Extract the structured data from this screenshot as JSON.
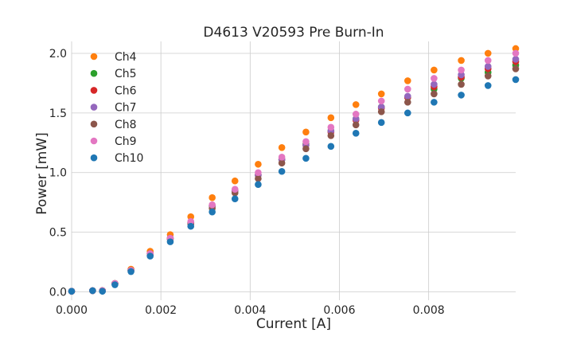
{
  "chart_data": {
    "type": "scatter",
    "title": "D4613 V20593 Pre Burn-In",
    "xlabel": "Current [A]",
    "ylabel": "Power [mW]",
    "xlim": [
      0,
      0.00995
    ],
    "ylim": [
      -0.07,
      2.1
    ],
    "x_ticks": [
      0,
      0.002,
      0.004,
      0.006,
      0.008
    ],
    "x_tick_labels": [
      "0.000",
      "0.002",
      "0.004",
      "0.006",
      "0.008"
    ],
    "y_ticks": [
      0,
      0.5,
      1.0,
      1.5,
      2.0
    ],
    "y_tick_labels": [
      "0.0",
      "0.5",
      "1.0",
      "1.5",
      "2.0"
    ],
    "grid": true,
    "legend_position": "upper-left",
    "x": [
      0,
      0.00047,
      0.00069,
      0.00097,
      0.00133,
      0.00176,
      0.00221,
      0.00267,
      0.00315,
      0.00366,
      0.00418,
      0.00471,
      0.00525,
      0.00581,
      0.00637,
      0.00694,
      0.00753,
      0.00812,
      0.00873,
      0.00933,
      0.00995
    ],
    "series": [
      {
        "name": "Ch4",
        "color": "#ff7f0e",
        "values": [
          0.005,
          0.01,
          0.01,
          0.07,
          0.19,
          0.34,
          0.48,
          0.63,
          0.79,
          0.93,
          1.07,
          1.21,
          1.34,
          1.46,
          1.57,
          1.66,
          1.77,
          1.86,
          1.94,
          2.0,
          2.04
        ]
      },
      {
        "name": "Ch5",
        "color": "#2ca02c",
        "values": [
          0.005,
          0.01,
          0.01,
          0.07,
          0.18,
          0.32,
          0.45,
          0.58,
          0.72,
          0.85,
          0.98,
          1.11,
          1.24,
          1.35,
          1.45,
          1.55,
          1.63,
          1.7,
          1.79,
          1.84,
          1.9
        ]
      },
      {
        "name": "Ch6",
        "color": "#d62728",
        "values": [
          0.005,
          0.01,
          0.01,
          0.07,
          0.18,
          0.32,
          0.45,
          0.58,
          0.72,
          0.85,
          0.98,
          1.11,
          1.23,
          1.34,
          1.44,
          1.54,
          1.63,
          1.72,
          1.8,
          1.87,
          1.93
        ]
      },
      {
        "name": "Ch7",
        "color": "#9467bd",
        "values": [
          0.005,
          0.01,
          0.01,
          0.07,
          0.18,
          0.32,
          0.45,
          0.58,
          0.72,
          0.85,
          0.98,
          1.11,
          1.23,
          1.35,
          1.45,
          1.55,
          1.64,
          1.74,
          1.82,
          1.89,
          1.95
        ]
      },
      {
        "name": "Ch8",
        "color": "#8c564b",
        "values": [
          0.005,
          0.01,
          0.01,
          0.07,
          0.18,
          0.31,
          0.44,
          0.57,
          0.7,
          0.83,
          0.95,
          1.08,
          1.2,
          1.31,
          1.4,
          1.51,
          1.59,
          1.66,
          1.74,
          1.81,
          1.87
        ]
      },
      {
        "name": "Ch9",
        "color": "#e377c2",
        "values": [
          0.005,
          0.01,
          0.01,
          0.07,
          0.18,
          0.32,
          0.45,
          0.59,
          0.73,
          0.86,
          1.0,
          1.13,
          1.26,
          1.38,
          1.49,
          1.6,
          1.7,
          1.79,
          1.86,
          1.94,
          2.0
        ]
      },
      {
        "name": "Ch10",
        "color": "#1f77b4",
        "values": [
          0.005,
          0.01,
          0.005,
          0.06,
          0.17,
          0.3,
          0.42,
          0.55,
          0.67,
          0.78,
          0.9,
          1.01,
          1.12,
          1.22,
          1.33,
          1.42,
          1.5,
          1.59,
          1.65,
          1.73,
          1.78
        ]
      }
    ]
  }
}
